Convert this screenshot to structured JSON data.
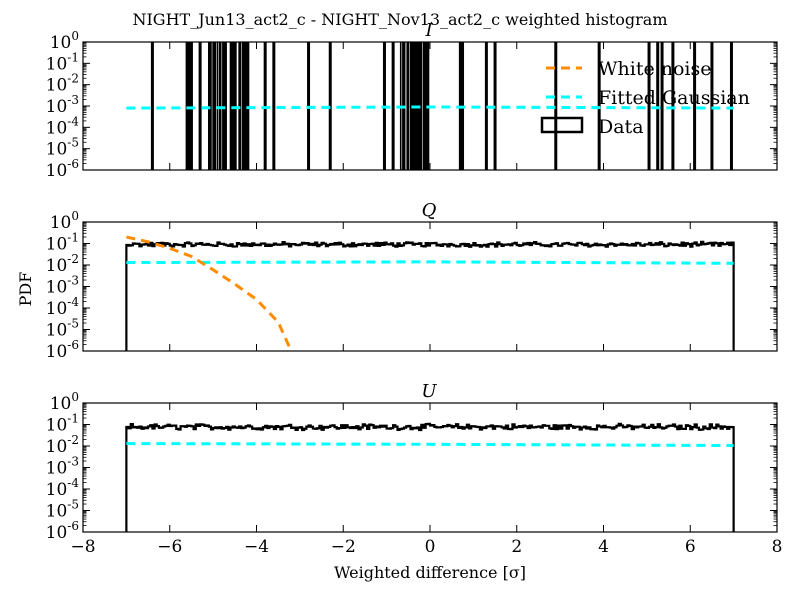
{
  "figure": {
    "title": "NIGHT_Jun13_act2_c - NIGHT_Nov13_act2_c weighted histogram",
    "xlabel": "Weighted difference [σ]",
    "ylabel": "PDF"
  },
  "legend": {
    "placement": "upper-right of top panel",
    "entries": [
      {
        "label": "White noise",
        "style": "dashed",
        "color": "#ff8c00"
      },
      {
        "label": "Fitted Gaussian",
        "style": "dashed",
        "color": "#00ffff"
      },
      {
        "label": "Data",
        "style": "box",
        "color": "#000000"
      }
    ]
  },
  "chart_data": [
    {
      "type": "histogram",
      "title": "I",
      "xlim": [
        -8,
        8
      ],
      "ylim": [
        1e-06,
        1
      ],
      "yscale": "log",
      "x_ticks": [
        -8,
        -6,
        -4,
        -2,
        0,
        2,
        4,
        6,
        8
      ],
      "y_ticks": [
        "10^-6",
        "10^-5",
        "10^-4",
        "10^-3",
        "10^-2",
        "10^-1",
        "10^0"
      ],
      "show_xticklabels": false,
      "grid": false,
      "series": [
        {
          "name": "Data",
          "kind": "sparse_spikes",
          "spike_x": [
            -6.4,
            -5.6,
            -5.55,
            -5.5,
            -5.3,
            -4.2,
            -3.8,
            -3.6,
            -2.8,
            -2.3,
            -1.05,
            -0.85,
            -0.6,
            -0.4,
            -0.3,
            -0.05,
            0.7,
            0.75,
            1.3,
            1.5,
            2.9,
            3.9,
            5.05,
            5.25,
            5.35,
            5.6,
            6.1,
            6.5,
            6.95
          ],
          "dense_ranges": [
            [
              -5.1,
              -4.2
            ],
            [
              -0.7,
              -0.05
            ]
          ],
          "top": 1
        },
        {
          "name": "Fitted Gaussian",
          "kind": "curve",
          "x": [
            -7,
            0,
            7
          ],
          "y": [
            0.0008,
            0.0009,
            0.0008
          ]
        }
      ]
    },
    {
      "type": "histogram",
      "title": "Q",
      "xlim": [
        -8,
        8
      ],
      "ylim": [
        1e-06,
        1
      ],
      "yscale": "log",
      "x_ticks": [
        -8,
        -6,
        -4,
        -2,
        0,
        2,
        4,
        6,
        8
      ],
      "y_ticks": [
        "10^-6",
        "10^-5",
        "10^-4",
        "10^-3",
        "10^-2",
        "10^-1",
        "10^0"
      ],
      "show_xticklabels": false,
      "grid": false,
      "series": [
        {
          "name": "Data",
          "kind": "step_band",
          "x_range": [
            -7,
            7
          ],
          "level": 0.08,
          "noise_min": 0.055,
          "noise_max": 0.12
        },
        {
          "name": "Fitted Gaussian",
          "kind": "curve",
          "x": [
            -7,
            0,
            7
          ],
          "y": [
            0.013,
            0.014,
            0.012
          ]
        },
        {
          "name": "White noise",
          "kind": "curve",
          "x": [
            -7,
            -6.5,
            -6,
            -5.5,
            -5,
            -4.5,
            -4,
            -3.5,
            -3.2
          ],
          "y": [
            0.2,
            0.12,
            0.06,
            0.025,
            0.006,
            0.0013,
            0.00025,
            2.2e-05,
            1e-06
          ]
        }
      ]
    },
    {
      "type": "histogram",
      "title": "U",
      "xlim": [
        -8,
        8
      ],
      "ylim": [
        1e-06,
        1
      ],
      "yscale": "log",
      "x_ticks": [
        -8,
        -6,
        -4,
        -2,
        0,
        2,
        4,
        6,
        8
      ],
      "y_ticks": [
        "10^-6",
        "10^-5",
        "10^-4",
        "10^-3",
        "10^-2",
        "10^-1",
        "10^0"
      ],
      "show_xticklabels": true,
      "grid": false,
      "series": [
        {
          "name": "Data",
          "kind": "step_band",
          "x_range": [
            -7,
            7
          ],
          "level": 0.065,
          "noise_min": 0.04,
          "noise_max": 0.11
        },
        {
          "name": "Fitted Gaussian",
          "kind": "curve",
          "x": [
            -7,
            0,
            7
          ],
          "y": [
            0.013,
            0.012,
            0.0105
          ]
        }
      ]
    }
  ]
}
